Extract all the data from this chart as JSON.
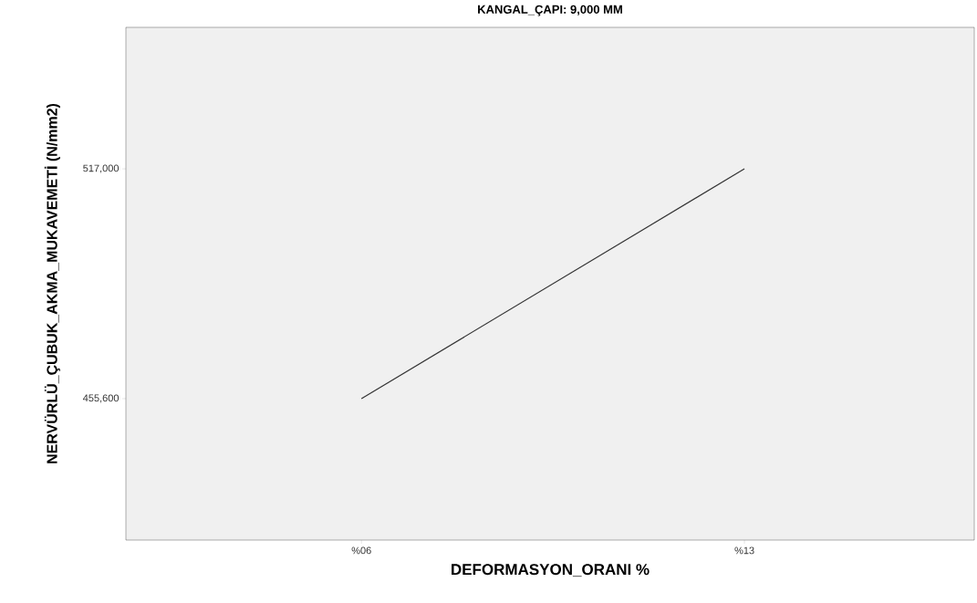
{
  "chart_data": {
    "type": "line",
    "title": "KANGAL_ÇAPI: 9,000 MM",
    "xlabel": "DEFORMASYON_ORANI %",
    "ylabel": "NERVÜRLÜ_ÇUBUK_AKMA_MUKAVEMETİ (N/mm2)",
    "categories": [
      "%06",
      "%13"
    ],
    "series": [
      {
        "color": "#333333",
        "values": [
          455600,
          517000
        ]
      }
    ],
    "ylim": [
      417800,
      554800
    ],
    "yticks": [
      {
        "value": 455600,
        "label": "455,600"
      },
      {
        "value": 517000,
        "label": "517,000"
      }
    ],
    "marker": "none",
    "line_style": "solid"
  }
}
